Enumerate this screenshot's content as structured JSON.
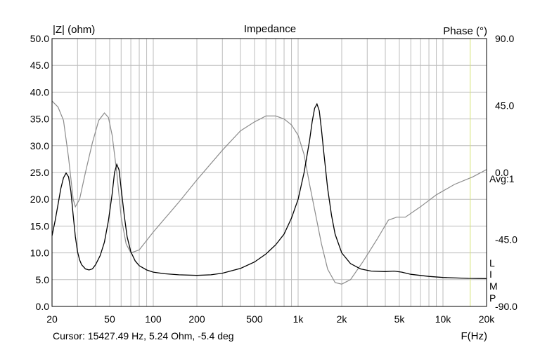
{
  "chart_data": {
    "type": "line",
    "title": "Impedance",
    "ylabel_left": "|Z| (ohm)",
    "ylabel_right": "Phase (°)",
    "xlabel": "F(Hz)",
    "x_scale": "log",
    "xlim": [
      20,
      20000
    ],
    "ylim_left": [
      0,
      50
    ],
    "ylim_right": [
      -90,
      90
    ],
    "grid": true,
    "left_ticks": [
      "0.0",
      "5.0",
      "10.0",
      "15.0",
      "20.0",
      "25.0",
      "30.0",
      "35.0",
      "40.0",
      "45.0",
      "50.0"
    ],
    "right_ticks": [
      {
        "label": "90.0",
        "value": 90
      },
      {
        "label": "45.0",
        "value": 45
      },
      {
        "label": "0.0",
        "value": 0
      },
      {
        "label": "-45.0",
        "value": -45
      },
      {
        "label": "-90.0",
        "value": -90
      }
    ],
    "x_ticks": [
      {
        "label": "20",
        "value": 20
      },
      {
        "label": "50",
        "value": 50
      },
      {
        "label": "100",
        "value": 100
      },
      {
        "label": "200",
        "value": 200
      },
      {
        "label": "500",
        "value": 500
      },
      {
        "label": "1k",
        "value": 1000
      },
      {
        "label": "2k",
        "value": 2000
      },
      {
        "label": "5k",
        "value": 5000
      },
      {
        "label": "10k",
        "value": 10000
      },
      {
        "label": "20k",
        "value": 20000
      }
    ],
    "annotations": {
      "avg": "Avg:1",
      "flags": [
        "L",
        "I",
        "M",
        "P"
      ],
      "cursor": "Cursor: 15427.49 Hz, 5.24 Ohm, -5.4 deg"
    },
    "cursor_frequency": 15427.49,
    "colors": {
      "impedance": "#000000",
      "phase": "#8c8c8c",
      "grid": "#bdbdbd",
      "cursor": "#d6e27a"
    },
    "series": [
      {
        "axis": "left",
        "points": [
          [
            20,
            13.2
          ],
          [
            21,
            16.0
          ],
          [
            22,
            19.0
          ],
          [
            23,
            22.0
          ],
          [
            24,
            24.0
          ],
          [
            25,
            24.9
          ],
          [
            26,
            24.2
          ],
          [
            27,
            21.5
          ],
          [
            28,
            17.0
          ],
          [
            29,
            13.0
          ],
          [
            30,
            10.2
          ],
          [
            31,
            8.7
          ],
          [
            32,
            7.8
          ],
          [
            34,
            7.0
          ],
          [
            36,
            6.8
          ],
          [
            38,
            7.0
          ],
          [
            40,
            7.8
          ],
          [
            43,
            9.5
          ],
          [
            46,
            12.0
          ],
          [
            49,
            16.0
          ],
          [
            52,
            21.0
          ],
          [
            54,
            25.0
          ],
          [
            56,
            26.5
          ],
          [
            58,
            25.5
          ],
          [
            60,
            22.0
          ],
          [
            63,
            17.0
          ],
          [
            66,
            13.0
          ],
          [
            70,
            10.2
          ],
          [
            75,
            8.5
          ],
          [
            80,
            7.6
          ],
          [
            90,
            6.8
          ],
          [
            100,
            6.4
          ],
          [
            120,
            6.1
          ],
          [
            150,
            5.9
          ],
          [
            200,
            5.8
          ],
          [
            250,
            5.9
          ],
          [
            300,
            6.2
          ],
          [
            400,
            7.1
          ],
          [
            500,
            8.3
          ],
          [
            600,
            9.8
          ],
          [
            700,
            11.5
          ],
          [
            800,
            13.5
          ],
          [
            900,
            16.5
          ],
          [
            1000,
            20.0
          ],
          [
            1100,
            25.0
          ],
          [
            1200,
            31.0
          ],
          [
            1250,
            34.5
          ],
          [
            1300,
            37.0
          ],
          [
            1350,
            37.8
          ],
          [
            1400,
            36.5
          ],
          [
            1450,
            33.0
          ],
          [
            1500,
            29.0
          ],
          [
            1600,
            22.0
          ],
          [
            1700,
            17.0
          ],
          [
            1800,
            13.5
          ],
          [
            2000,
            10.0
          ],
          [
            2300,
            8.0
          ],
          [
            2700,
            7.0
          ],
          [
            3200,
            6.6
          ],
          [
            4000,
            6.5
          ],
          [
            4600,
            6.6
          ],
          [
            5200,
            6.4
          ],
          [
            6000,
            6.0
          ],
          [
            8000,
            5.6
          ],
          [
            10000,
            5.4
          ],
          [
            15000,
            5.24
          ],
          [
            20000,
            5.2
          ]
        ]
      },
      {
        "axis": "right",
        "points": [
          [
            20,
            48
          ],
          [
            22,
            44
          ],
          [
            24,
            35
          ],
          [
            26,
            10
          ],
          [
            28,
            -18
          ],
          [
            29,
            -23
          ],
          [
            31,
            -18
          ],
          [
            34,
            0
          ],
          [
            38,
            20
          ],
          [
            42,
            35
          ],
          [
            46,
            40
          ],
          [
            49,
            37
          ],
          [
            52,
            25
          ],
          [
            56,
            0
          ],
          [
            60,
            -30
          ],
          [
            65,
            -48
          ],
          [
            70,
            -54
          ],
          [
            80,
            -52
          ],
          [
            100,
            -40
          ],
          [
            150,
            -20
          ],
          [
            200,
            -5
          ],
          [
            300,
            15
          ],
          [
            400,
            28
          ],
          [
            500,
            34
          ],
          [
            600,
            38
          ],
          [
            700,
            38
          ],
          [
            800,
            36
          ],
          [
            900,
            32
          ],
          [
            1000,
            25
          ],
          [
            1100,
            12
          ],
          [
            1200,
            -8
          ],
          [
            1300,
            -25
          ],
          [
            1450,
            -48
          ],
          [
            1600,
            -65
          ],
          [
            1800,
            -74
          ],
          [
            2000,
            -75
          ],
          [
            2300,
            -72
          ],
          [
            2800,
            -60
          ],
          [
            3500,
            -45
          ],
          [
            4200,
            -32
          ],
          [
            4800,
            -30
          ],
          [
            5500,
            -30
          ],
          [
            7000,
            -23
          ],
          [
            9000,
            -15
          ],
          [
            12000,
            -8
          ],
          [
            16000,
            -3
          ],
          [
            20000,
            2
          ]
        ]
      }
    ]
  }
}
